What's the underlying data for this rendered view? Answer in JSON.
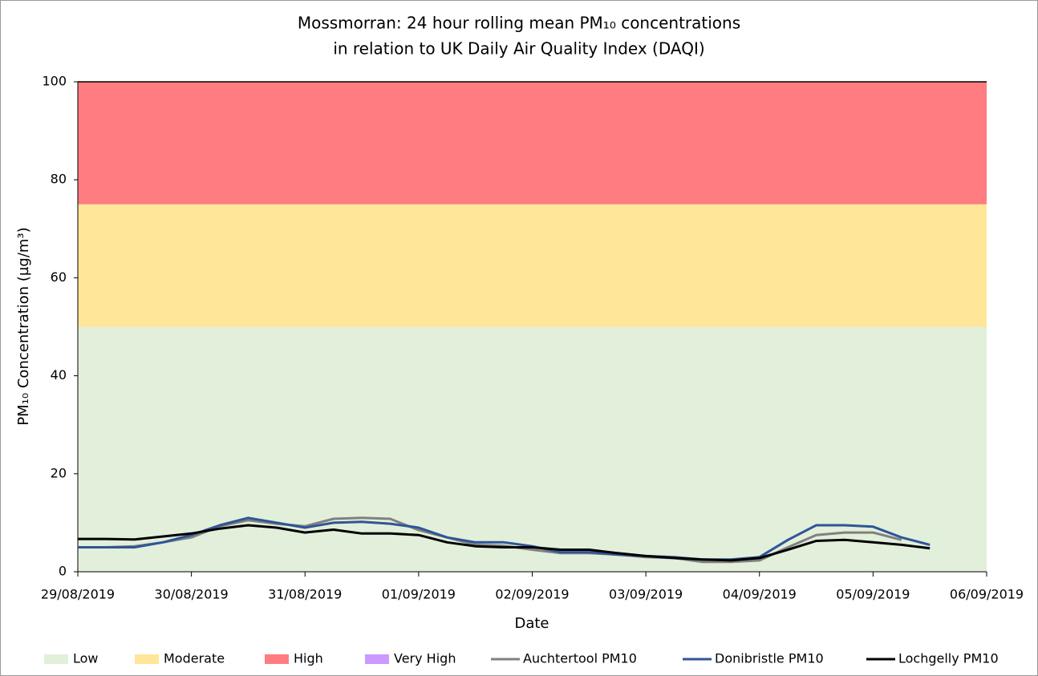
{
  "chart_data": {
    "type": "line",
    "title": [
      "Mossmorran: 24 hour rolling mean PM₁₀ concentrations",
      "in relation to UK Daily Air Quality Index (DAQI)"
    ],
    "x_label": "Date",
    "y_label": "PM₁₀ Concentration (µg/m³)",
    "xlim": [
      "29/08/2019",
      "06/09/2019"
    ],
    "xticks": [
      "29/08/2019",
      "30/08/2019",
      "31/08/2019",
      "01/09/2019",
      "02/09/2019",
      "03/09/2019",
      "04/09/2019",
      "05/09/2019",
      "06/09/2019"
    ],
    "ylim": [
      0,
      100
    ],
    "yticks": [
      0,
      20,
      40,
      60,
      80,
      100
    ],
    "grid": false,
    "legend": "bottom",
    "bands": [
      {
        "name": "Low",
        "color": "#e2efda",
        "range": [
          0,
          50
        ]
      },
      {
        "name": "Moderate",
        "color": "#ffe699",
        "range": [
          50,
          75
        ]
      },
      {
        "name": "High",
        "color": "#ff7c80",
        "range": [
          75,
          100
        ]
      },
      {
        "name": "Very High",
        "color": "#cc99ff"
      }
    ],
    "x": [
      "29/08/2019 00:00",
      "29/08/2019 06:00",
      "29/08/2019 12:00",
      "29/08/2019 18:00",
      "30/08/2019 00:00",
      "30/08/2019 06:00",
      "30/08/2019 12:00",
      "30/08/2019 18:00",
      "31/08/2019 00:00",
      "31/08/2019 06:00",
      "31/08/2019 12:00",
      "31/08/2019 18:00",
      "01/09/2019 00:00",
      "01/09/2019 06:00",
      "01/09/2019 12:00",
      "01/09/2019 18:00",
      "02/09/2019 00:00",
      "02/09/2019 06:00",
      "02/09/2019 12:00",
      "02/09/2019 18:00",
      "03/09/2019 00:00",
      "03/09/2019 06:00",
      "03/09/2019 12:00",
      "03/09/2019 18:00",
      "04/09/2019 00:00",
      "04/09/2019 06:00",
      "04/09/2019 12:00",
      "04/09/2019 18:00",
      "05/09/2019 00:00",
      "05/09/2019 06:00",
      "05/09/2019 12:00"
    ],
    "series": [
      {
        "name": "Auchtertool PM10",
        "color": "#808080",
        "values": [
          5,
          5,
          5.2,
          6,
          7,
          9.3,
          10.5,
          9.8,
          9.3,
          10.8,
          11,
          10.8,
          8.5,
          7,
          5.5,
          5.3,
          4.5,
          3.8,
          3.8,
          3.5,
          3,
          2.8,
          2,
          2,
          2.3,
          5,
          7.5,
          8,
          8,
          6.5,
          null
        ]
      },
      {
        "name": "Donibristle PM10",
        "color": "#2f5597",
        "values": [
          5,
          5,
          5,
          6,
          7.5,
          9.5,
          11,
          10,
          9,
          10,
          10.2,
          9.8,
          9,
          7,
          6,
          6,
          5.2,
          4,
          4,
          3.5,
          3.2,
          3,
          2.5,
          2.5,
          3,
          6.5,
          9.5,
          9.5,
          9.2,
          7,
          5.5
        ]
      },
      {
        "name": "Lochgelly PM10",
        "color": "#000000",
        "values": [
          6.7,
          6.7,
          6.6,
          7.2,
          7.8,
          8.8,
          9.5,
          9,
          8,
          8.6,
          7.8,
          7.8,
          7.5,
          6,
          5.2,
          5,
          5,
          4.5,
          4.5,
          3.8,
          3.2,
          2.8,
          2.5,
          2.3,
          2.8,
          4.5,
          6.3,
          6.5,
          6,
          5.5,
          4.8
        ]
      }
    ]
  }
}
